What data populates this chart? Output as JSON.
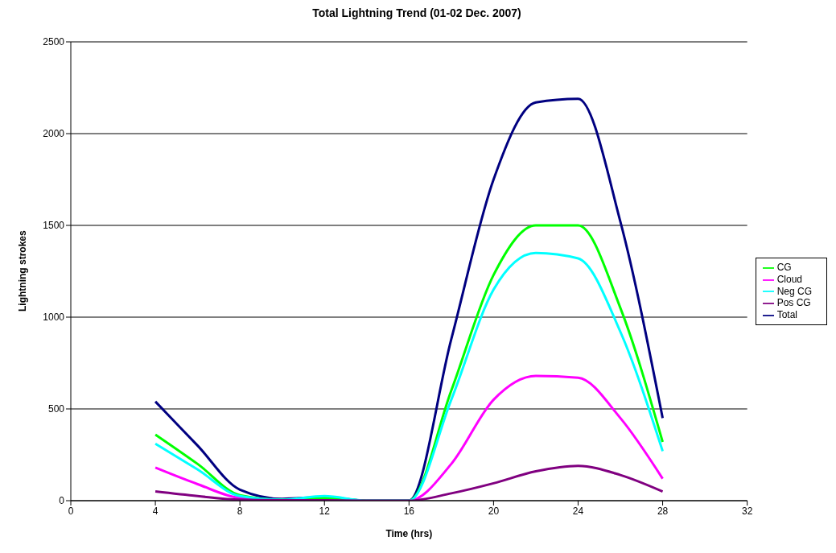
{
  "chart_data": {
    "type": "line",
    "title": "Total Lightning Trend (01-02 Dec. 2007)",
    "xlabel": "Time (hrs)",
    "ylabel": "Lightning strokes",
    "x": [
      4,
      6,
      8,
      10,
      12,
      14,
      16,
      18,
      20,
      22,
      24,
      26,
      28
    ],
    "series": [
      {
        "name": "Total",
        "color": "#000080",
        "values": [
          540,
          300,
          60,
          10,
          20,
          0,
          0,
          880,
          1750,
          2170,
          2190,
          1520,
          450
        ]
      },
      {
        "name": "Cloud",
        "color": "#ff00ff",
        "values": [
          180,
          90,
          15,
          5,
          5,
          0,
          0,
          200,
          550,
          680,
          670,
          450,
          120
        ]
      },
      {
        "name": "CG",
        "color": "#00ff00",
        "values": [
          360,
          200,
          30,
          5,
          15,
          0,
          0,
          600,
          1230,
          1500,
          1500,
          1050,
          320
        ]
      },
      {
        "name": "Neg CG",
        "color": "#00ffff",
        "values": [
          310,
          170,
          25,
          5,
          25,
          0,
          0,
          550,
          1150,
          1350,
          1320,
          920,
          270
        ]
      },
      {
        "name": "Pos CG",
        "color": "#800080",
        "values": [
          50,
          25,
          5,
          2,
          2,
          0,
          0,
          40,
          95,
          160,
          190,
          140,
          50
        ]
      }
    ],
    "xlim": [
      0,
      32
    ],
    "xticks": [
      0,
      4,
      8,
      12,
      16,
      20,
      24,
      28,
      32
    ],
    "ylim": [
      0,
      2500
    ],
    "yticks": [
      0,
      500,
      1000,
      1500,
      2000,
      2500
    ],
    "grid": "y",
    "legend": "right",
    "marker": "none",
    "line_style": "solid"
  }
}
